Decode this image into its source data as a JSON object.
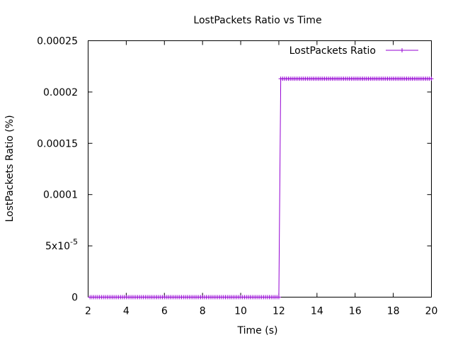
{
  "chart_data": {
    "type": "line",
    "title": "LostPackets Ratio vs Time",
    "xlabel": "Time (s)",
    "ylabel": "LostPackets Ratio (%)",
    "xlim": [
      2,
      20
    ],
    "ylim": [
      0,
      0.00025
    ],
    "x_ticks": [
      {
        "value": 2,
        "label": "2"
      },
      {
        "value": 4,
        "label": "4"
      },
      {
        "value": 6,
        "label": "6"
      },
      {
        "value": 8,
        "label": "8"
      },
      {
        "value": 10,
        "label": "10"
      },
      {
        "value": 12,
        "label": "12"
      },
      {
        "value": 14,
        "label": "14"
      },
      {
        "value": 16,
        "label": "16"
      },
      {
        "value": 18,
        "label": "18"
      },
      {
        "value": 20,
        "label": "20"
      }
    ],
    "y_ticks": [
      {
        "value": 0,
        "label": "0"
      },
      {
        "value": 5e-05,
        "label": "5x10",
        "exp": "-5"
      },
      {
        "value": 0.0001,
        "label": "0.0001"
      },
      {
        "value": 0.00015,
        "label": "0.00015"
      },
      {
        "value": 0.0002,
        "label": "0.0002"
      },
      {
        "value": 0.00025,
        "label": "0.00025"
      }
    ],
    "legend": {
      "position": "top-right",
      "label": "LostPackets Ratio"
    },
    "series": [
      {
        "name": "LostPackets Ratio",
        "color": "#9400d3",
        "marker": "plus",
        "segments": [
          {
            "x_start": 2.1,
            "x_end": 12.0,
            "step": 0.1,
            "value": 0
          },
          {
            "x_start": 12.1,
            "x_end": 20.0,
            "step": 0.1,
            "value": 0.000213
          }
        ]
      }
    ]
  }
}
